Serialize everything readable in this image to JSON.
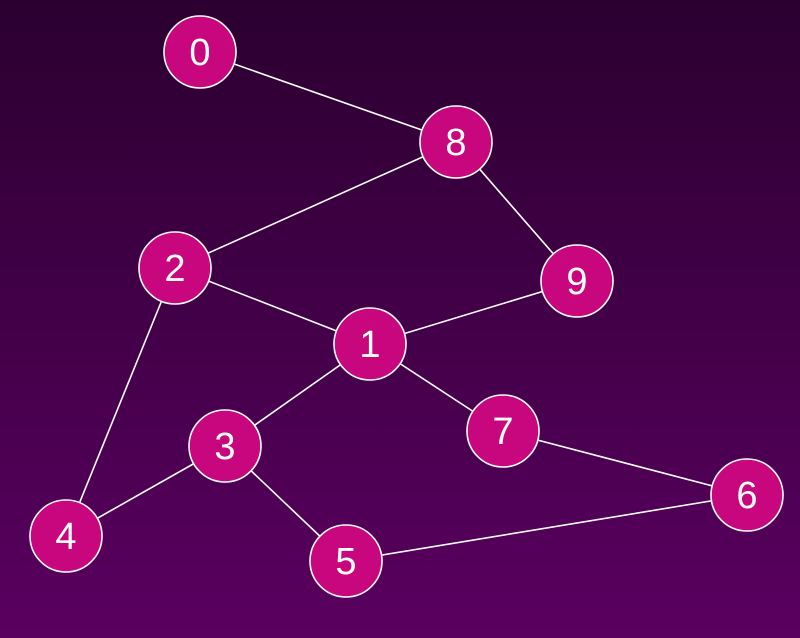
{
  "colors": {
    "background_top": "#2b0030",
    "background_bottom": "#5a0060",
    "node_fill": "#c8067e",
    "node_stroke": "#ffffff",
    "edge": "#ffffff",
    "label": "#ffffff"
  },
  "graph": {
    "nodes": [
      {
        "id": "0",
        "label": "0"
      },
      {
        "id": "1",
        "label": "1"
      },
      {
        "id": "2",
        "label": "2"
      },
      {
        "id": "3",
        "label": "3"
      },
      {
        "id": "4",
        "label": "4"
      },
      {
        "id": "5",
        "label": "5"
      },
      {
        "id": "6",
        "label": "6"
      },
      {
        "id": "7",
        "label": "7"
      },
      {
        "id": "8",
        "label": "8"
      },
      {
        "id": "9",
        "label": "9"
      }
    ],
    "edges": [
      [
        "0",
        "8"
      ],
      [
        "8",
        "2"
      ],
      [
        "8",
        "9"
      ],
      [
        "2",
        "1"
      ],
      [
        "2",
        "4"
      ],
      [
        "9",
        "1"
      ],
      [
        "1",
        "3"
      ],
      [
        "1",
        "7"
      ],
      [
        "3",
        "4"
      ],
      [
        "3",
        "5"
      ],
      [
        "7",
        "6"
      ],
      [
        "5",
        "6"
      ]
    ]
  }
}
